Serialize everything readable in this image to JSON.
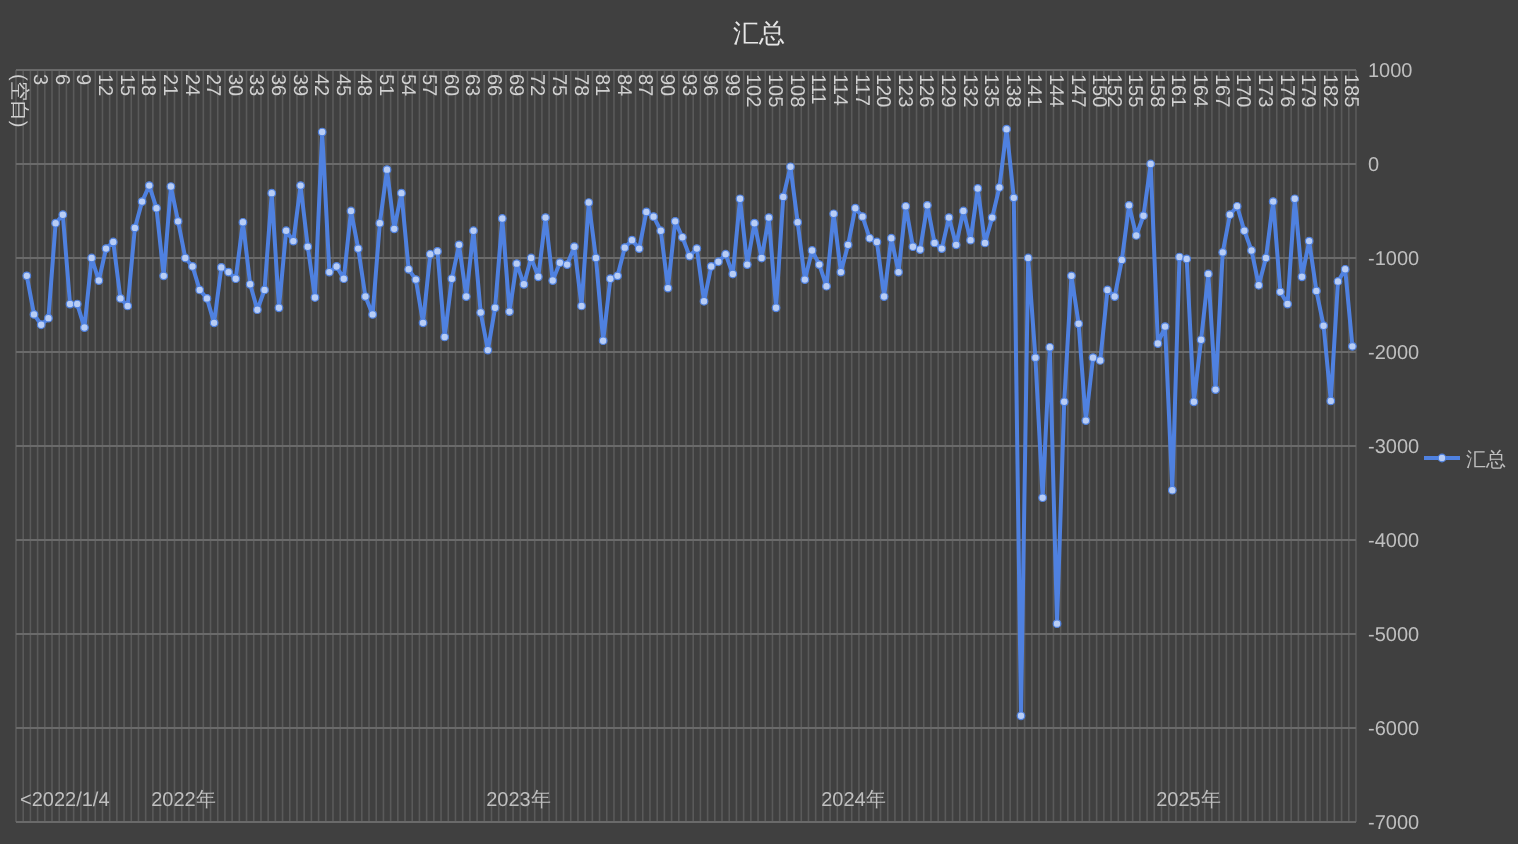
{
  "chart_data": {
    "type": "line",
    "title": "汇总",
    "categories": [
      "(空白)",
      null,
      null,
      "3",
      null,
      null,
      "6",
      null,
      null,
      "9",
      null,
      null,
      "12",
      null,
      null,
      "15",
      null,
      null,
      "18",
      null,
      null,
      "21",
      null,
      null,
      "24",
      null,
      null,
      "27",
      null,
      null,
      "30",
      null,
      null,
      "33",
      null,
      null,
      "36",
      null,
      null,
      "39",
      null,
      null,
      "42",
      null,
      null,
      "45",
      null,
      null,
      "48",
      null,
      null,
      "51",
      null,
      null,
      "54",
      null,
      null,
      "57",
      null,
      null,
      "60",
      null,
      null,
      "63",
      null,
      null,
      "66",
      null,
      null,
      "69",
      null,
      null,
      "72",
      null,
      null,
      "75",
      null,
      null,
      "78",
      null,
      null,
      "81",
      null,
      null,
      "84",
      null,
      null,
      "87",
      null,
      null,
      "90",
      null,
      null,
      "93",
      null,
      null,
      "96",
      null,
      null,
      "99",
      null,
      null,
      "102",
      null,
      null,
      "105",
      null,
      null,
      "108",
      null,
      null,
      "111",
      null,
      null,
      "114",
      null,
      null,
      "117",
      null,
      null,
      "120",
      null,
      null,
      "123",
      null,
      null,
      "126",
      null,
      null,
      "129",
      null,
      null,
      "132",
      null,
      null,
      "135",
      null,
      null,
      "138",
      null,
      null,
      "141",
      null,
      null,
      "144",
      null,
      null,
      "147",
      null,
      null,
      "150",
      null,
      "152",
      null,
      null,
      "155",
      null,
      null,
      "158",
      null,
      null,
      "161",
      null,
      null,
      "164",
      null,
      null,
      "167",
      null,
      null,
      "170",
      null,
      null,
      "173",
      null,
      null,
      "176",
      null,
      null,
      "179",
      null,
      null,
      "182",
      null,
      null,
      "185"
    ],
    "series": [
      {
        "name": "汇总",
        "color": "#4f81e0",
        "values": [
          null,
          -1190,
          -1600,
          -1710,
          -1640,
          -630,
          -540,
          -1490,
          -1490,
          -1740,
          -1000,
          -1240,
          -900,
          -830,
          -1430,
          -1510,
          -680,
          -400,
          -230,
          -470,
          -1190,
          -240,
          -610,
          -1000,
          -1090,
          -1340,
          -1430,
          -1690,
          -1100,
          -1150,
          -1220,
          -620,
          -1280,
          -1550,
          -1340,
          -310,
          -1530,
          -710,
          -820,
          -230,
          -880,
          -1420,
          340,
          -1150,
          -1090,
          -1220,
          -500,
          -900,
          -1410,
          -1600,
          -630,
          -60,
          -690,
          -310,
          -1120,
          -1230,
          -1690,
          -960,
          -930,
          -1840,
          -1220,
          -860,
          -1410,
          -710,
          -1580,
          -1980,
          -1530,
          -580,
          -1570,
          -1060,
          -1280,
          -1000,
          -1200,
          -570,
          -1240,
          -1050,
          -1070,
          -880,
          -1510,
          -410,
          -1000,
          -1880,
          -1220,
          -1190,
          -890,
          -810,
          -900,
          -510,
          -560,
          -710,
          -1320,
          -610,
          -780,
          -980,
          -900,
          -1460,
          -1090,
          -1040,
          -960,
          -1170,
          -370,
          -1070,
          -630,
          -1000,
          -570,
          -1530,
          -350,
          -30,
          -620,
          -1230,
          -920,
          -1070,
          -1300,
          -530,
          -1150,
          -860,
          -470,
          -560,
          -790,
          -830,
          -1410,
          -790,
          -1150,
          -450,
          -880,
          -910,
          -440,
          -840,
          -900,
          -570,
          -860,
          -500,
          -810,
          -260,
          -840,
          -570,
          -250,
          370,
          -360,
          -5870,
          -1000,
          -2060,
          -3550,
          -1950,
          -4890,
          -2530,
          -1190,
          -1700,
          -2730,
          -2060,
          -2090,
          -1340,
          -1410,
          -1020,
          -440,
          -760,
          -550,
          0,
          -1910,
          -1730,
          -3470,
          -990,
          -1010,
          -2530,
          -1870,
          -1170,
          -2400,
          -940,
          -540,
          -450,
          -710,
          -920,
          -1290,
          -1000,
          -400,
          -1360,
          -1490,
          -370,
          -1200,
          -820,
          -1350,
          -1720,
          -2520,
          -1250,
          -1120,
          -1940
        ]
      }
    ],
    "ylim": [
      -7000,
      1000
    ],
    "yticks": [
      -7000,
      -6000,
      -5000,
      -4000,
      -3000,
      -2000,
      -1000,
      0,
      1000
    ],
    "annotations": [
      "<2022/1/4",
      "2022年",
      "2023年",
      "2024年",
      "2025年"
    ],
    "grid": true,
    "legend": "right",
    "marker": "circle",
    "line_style": "solid"
  }
}
